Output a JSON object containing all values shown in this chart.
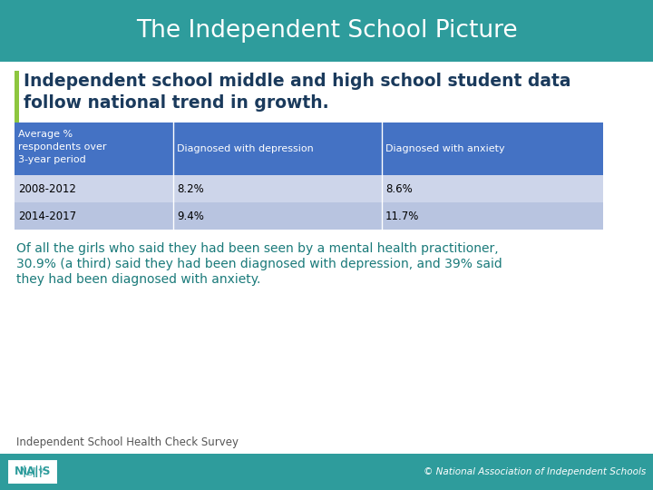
{
  "title": "The Independent School Picture",
  "title_bg_color": "#2e9c9c",
  "title_text_color": "#ffffff",
  "subtitle_line1": "Independent school middle and high school student data",
  "subtitle_line2": "follow national trend in growth.",
  "subtitle_color": "#1a3a5c",
  "accent_bar_color": "#8dc63f",
  "body_bg": "#ffffff",
  "table_header_bg": "#4472c4",
  "table_header_text": "#ffffff",
  "table_row1_bg": "#cdd5ea",
  "table_row2_bg": "#b8c4e0",
  "table_col1_text": "#1a3a5c",
  "table_val_text": "#000000",
  "table_col1_header": [
    "Average %",
    "respondents over",
    "3-year period"
  ],
  "table_col2_header": "Diagnosed with depression",
  "table_col3_header": "Diagnosed with anxiety",
  "table_rows": [
    [
      "2008-2012",
      "8.2%",
      "8.6%"
    ],
    [
      "2014-2017",
      "9.4%",
      "11.7%"
    ]
  ],
  "para_line1": "Of all the girls who said they had been seen by a mental health practitioner,",
  "para_line2": "30.9% (a third) said they had been diagnosed with depression, and 39% said",
  "para_line3": "they had been diagnosed with anxiety.",
  "paragraph_color": "#1a7a7a",
  "footer_text": "Independent School Health Check Survey",
  "footer_text_color": "#555555",
  "footer_bg": "#2e9c9c",
  "copyright_text": "© National Association of Independent Schools",
  "nais_logo_bg": "#ffffff",
  "nais_logo_border": "#2e9c9c",
  "nais_text_color": "#2e9c9c"
}
